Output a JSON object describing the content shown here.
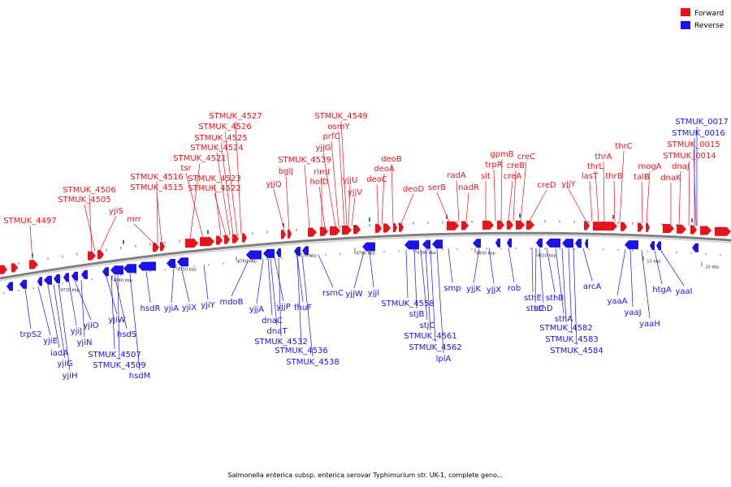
{
  "colors": {
    "forward": "#e8141c",
    "reverse": "#1a14e8",
    "backbone": "#808080"
  },
  "legend": [
    {
      "label": "Forward",
      "color": "#e8141c"
    },
    {
      "label": "Reverse",
      "color": "#1a14e8"
    }
  ],
  "footer": "Salmonella enterica subsp. enterica serovar Typhimurium str. UK-1, complete geno...",
  "ticks": [
    "4730 kbp",
    "4740 kbp",
    "4750 kbp",
    "4760 kbp",
    "4770 kbp",
    "4780 kbp",
    "4790 kbp",
    "4800 kbp",
    "4810 kbp",
    "10 kbp",
    "20 kbp"
  ],
  "forward_labels": [
    "STMUK_4497",
    "STMUK_4506",
    "STMUK_4505",
    "yjiS",
    "mrr",
    "STMUK_4516",
    "STMUK_4515",
    "STMUK_4521",
    "tsr",
    "STMUK_4523",
    "STMUK_4522",
    "STMUK_4527",
    "STMUK_4526",
    "STMUK_4525",
    "STMUK_4524",
    "yjjQ",
    "bglJ",
    "STMUK_4539",
    "rimI",
    "holD",
    "STMUK_4549",
    "osmY",
    "prfC",
    "yjjG",
    "yjjU",
    "yjjV",
    "deoC",
    "deoA",
    "deoB",
    "deoD",
    "serB",
    "radA",
    "nadR",
    "slt",
    "trpR",
    "gpmB",
    "creB",
    "creA",
    "creC",
    "creD",
    "yjjY",
    "lasT",
    "thrL",
    "thrA",
    "thrB",
    "thrC",
    "talB",
    "mogA",
    "dnaK",
    "dnaJ",
    "STMUK_0014",
    "STMUK_0015"
  ],
  "reverse_labels": [
    "trpS2",
    "yjiE",
    "iadA",
    "yjiG",
    "yjiH",
    "yjiJ",
    "yjiO",
    "yjiN",
    "yjiW",
    "STMUK_4507",
    "hsdS",
    "STMUK_4509",
    "hsdM",
    "hsdR",
    "yjiA",
    "yjiX",
    "yjiY",
    "mdoB",
    "yjjA",
    "dnaC",
    "dnaT",
    "yjjP",
    "STMUK_4532",
    "STMUK_4536",
    "STMUK_4538",
    "fhuF",
    "rsmC",
    "yjjW",
    "yjjI",
    "STMUK_4558",
    "stjB",
    "stjC",
    "STMUK_4561",
    "STMUK_4562",
    "lplA",
    "smp",
    "yjjK",
    "yjjX",
    "rob",
    "sthE",
    "sthD",
    "sthC",
    "sthB",
    "sthA",
    "STMUK_4582",
    "STMUK_4583",
    "STMUK_4584",
    "arcA",
    "yaaA",
    "yaaJ",
    "yaaH",
    "htgA",
    "yaaI",
    "STMUK_0016",
    "STMUK_0017"
  ]
}
